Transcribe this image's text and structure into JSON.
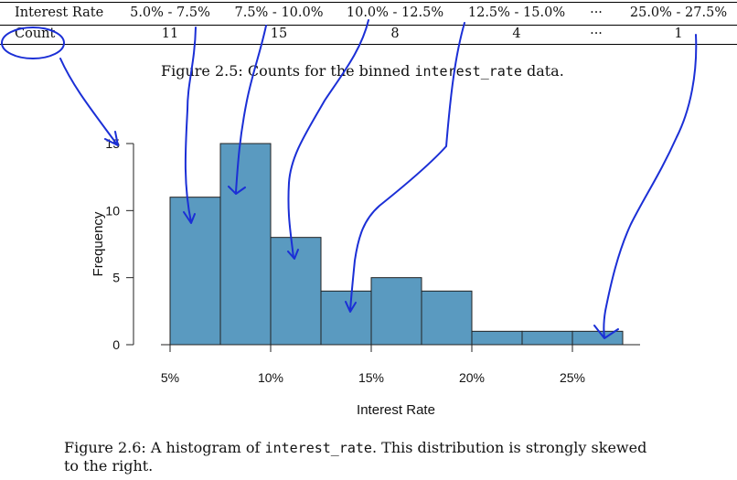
{
  "table": {
    "row_header_1": "Interest Rate",
    "row_header_2": "Count",
    "bins": [
      "5.0% - 7.5%",
      "7.5% - 10.0%",
      "10.0% - 12.5%",
      "12.5% - 15.0%",
      "···",
      "25.0% - 27.5%"
    ],
    "counts": [
      "11",
      "15",
      "8",
      "4",
      "···",
      "1"
    ]
  },
  "caption_25": {
    "prefix": "Figure 2.5: Counts for the binned ",
    "code": "interest_rate",
    "suffix": " data."
  },
  "caption_26": {
    "prefix": "Figure 2.6: A histogram of ",
    "code": "interest_rate",
    "suffix": ". This distribution is strongly skewed",
    "line2": "to the right."
  },
  "chart_data": {
    "type": "bar",
    "title": "",
    "xlabel": "Interest Rate",
    "ylabel": "Frequency",
    "bin_edges": [
      5,
      7.5,
      10,
      12.5,
      15,
      17.5,
      20,
      22.5,
      25,
      27.5
    ],
    "values": [
      11,
      15,
      8,
      4,
      5,
      4,
      1,
      1,
      1
    ],
    "xlim": [
      5,
      27.5
    ],
    "ylim": [
      0,
      15
    ],
    "xticks": [
      5,
      10,
      15,
      20,
      25
    ],
    "xtick_labels": [
      "5%",
      "10%",
      "15%",
      "20%",
      "25%"
    ],
    "yticks": [
      0,
      5,
      10,
      15
    ],
    "ytick_labels": [
      "0",
      "5",
      "10",
      "15"
    ],
    "bar_color": "#5a9ac0",
    "grid": false
  },
  "annotation_color": "#1b2fd6"
}
